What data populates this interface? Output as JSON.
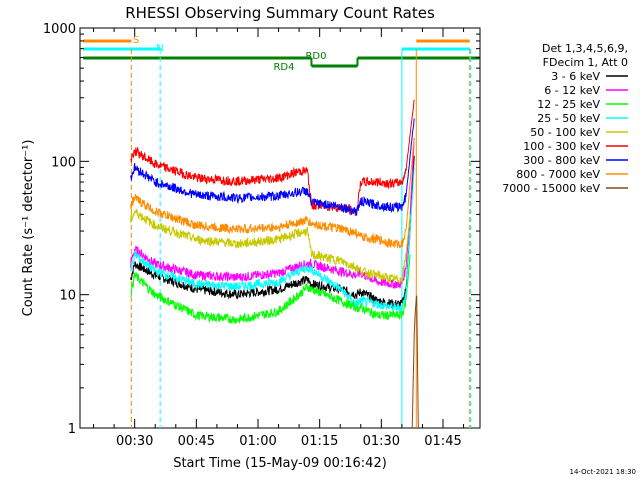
{
  "chart_data": {
    "type": "line",
    "title": "RHESSI Observing Summary Count Rates",
    "xlabel": "Start Time (15-May-09 00:16:42)",
    "ylabel": "Count Rate (s⁻¹ detector⁻¹)",
    "y_scale": "log",
    "x_unit": "minutes after 00:00 UT",
    "xlim": [
      16.7,
      114.0
    ],
    "ylim": [
      1,
      1000
    ],
    "x_ticks": [
      {
        "value": 30,
        "label": "00:30"
      },
      {
        "value": 45,
        "label": "00:45"
      },
      {
        "value": 60,
        "label": "01:00"
      },
      {
        "value": 75,
        "label": "01:15"
      },
      {
        "value": 90,
        "label": "01:30"
      },
      {
        "value": 105,
        "label": "01:45"
      }
    ],
    "y_ticks": [
      {
        "value": 1,
        "label": "1"
      },
      {
        "value": 10,
        "label": "10"
      },
      {
        "value": 100,
        "label": "100"
      },
      {
        "value": 1000,
        "label": "1000"
      }
    ],
    "legend": {
      "position": "right",
      "header": [
        "Det 1,3,4,5,6,9,",
        "FDecim 1, Att 0"
      ]
    },
    "series": [
      {
        "name": "3 - 6 keV",
        "color": "#000000",
        "x": [
          29,
          30,
          35,
          45,
          55,
          65,
          70,
          72,
          73,
          80,
          84,
          85,
          89,
          93,
          95,
          96,
          97,
          98
        ],
        "y": [
          13,
          17,
          14,
          11,
          10,
          11,
          12.5,
          13,
          12,
          11,
          10,
          10.5,
          9,
          8.5,
          8.5,
          11,
          30,
          110
        ]
      },
      {
        "name": "6 - 12 keV",
        "color": "#ff00ff",
        "x": [
          29,
          30,
          35,
          45,
          55,
          65,
          70,
          72,
          73,
          80,
          84,
          85,
          89,
          93,
          95,
          96,
          97,
          98
        ],
        "y": [
          17,
          22,
          17,
          14,
          13.5,
          14.5,
          16.5,
          17,
          17,
          15,
          14,
          14.5,
          12.5,
          12,
          12,
          16,
          40,
          150
        ]
      },
      {
        "name": "12 - 25 keV",
        "color": "#00ff00",
        "x": [
          29,
          30,
          35,
          45,
          55,
          65,
          70,
          72,
          73,
          80,
          84,
          85,
          89,
          93,
          95,
          96,
          97
        ],
        "y": [
          10,
          14,
          10,
          7,
          6.5,
          7.5,
          10,
          11.5,
          11,
          9,
          8,
          8,
          7,
          7,
          7,
          9,
          20
        ]
      },
      {
        "name": "25 - 50 keV",
        "color": "#00ffff",
        "x": [
          29,
          30,
          35,
          45,
          55,
          65,
          70,
          72,
          73,
          80,
          84,
          85,
          89,
          93,
          95,
          96,
          97,
          98
        ],
        "y": [
          15,
          20,
          15,
          12,
          11.5,
          12.5,
          15,
          16,
          15.5,
          11,
          8.5,
          9,
          8.5,
          8,
          8,
          10,
          30,
          90
        ]
      },
      {
        "name": "50 - 100 keV",
        "color": "#c8c800",
        "x": [
          29,
          30,
          35,
          45,
          55,
          65,
          70,
          72,
          73,
          80,
          84,
          85,
          89,
          93,
          95,
          96,
          97
        ],
        "y": [
          36,
          42,
          33,
          26,
          24,
          26,
          29,
          30,
          20,
          18,
          16,
          15,
          14,
          13,
          13,
          20,
          40
        ]
      },
      {
        "name": "100 - 300 keV",
        "color": "#ff0000",
        "x": [
          29,
          30,
          35,
          45,
          55,
          65,
          70,
          72,
          73,
          80,
          84,
          85,
          89,
          93,
          95,
          96,
          97,
          98
        ],
        "y": [
          100,
          120,
          95,
          75,
          71,
          75,
          84,
          85,
          47,
          45,
          42,
          70,
          70,
          68,
          70,
          85,
          160,
          290
        ]
      },
      {
        "name": "300 - 800 keV",
        "color": "#0000ff",
        "x": [
          29,
          30,
          35,
          45,
          55,
          65,
          70,
          72,
          73,
          80,
          84,
          85,
          89,
          93,
          95,
          96,
          97,
          98
        ],
        "y": [
          75,
          90,
          70,
          56,
          53,
          55,
          59,
          60,
          49,
          46,
          42,
          50,
          47,
          45,
          46,
          55,
          110,
          210
        ]
      },
      {
        "name": "800 - 7000 keV",
        "color": "#ff8c00",
        "x": [
          29,
          30,
          35,
          45,
          55,
          65,
          70,
          72,
          73,
          80,
          84,
          85,
          89,
          93,
          95,
          96,
          97,
          98
        ],
        "y": [
          47,
          53,
          42,
          33,
          31,
          32,
          35,
          36,
          34,
          31,
          29,
          27,
          26,
          24,
          24,
          30,
          70,
          150
        ]
      },
      {
        "name": "7000 - 15000 keV",
        "color": "#8b4513",
        "x": [
          97.5,
          98,
          98.3,
          98.6,
          99
        ],
        "y": [
          1,
          5,
          8,
          10,
          1
        ]
      }
    ],
    "status_bars": [
      {
        "label": "S",
        "color": "#ff8c00",
        "segments": [
          [
            17.5,
            29.2
          ],
          [
            98.5,
            111.5
          ]
        ]
      },
      {
        "label": "N",
        "color": "#00ffff",
        "segments": [
          [
            17.5,
            36.2
          ],
          [
            95.0,
            111.5
          ]
        ]
      },
      {
        "label": "RD0",
        "color": "#008000",
        "segments": [
          [
            17.5,
            73.0
          ],
          [
            84.2,
            114.0
          ]
        ]
      },
      {
        "label": "RD4",
        "color": "#008000",
        "segments": [
          [
            73.0,
            84.2
          ]
        ]
      }
    ],
    "vertical_lines": [
      {
        "x": 29.2,
        "color": "#ff8c00",
        "style": "dashed"
      },
      {
        "x": 36.2,
        "color": "#00ffff",
        "style": "dashed"
      },
      {
        "x": 95.0,
        "color": "#00ffff",
        "style": "solid"
      },
      {
        "x": 98.5,
        "color": "#ff8c00",
        "style": "solid"
      },
      {
        "x": 111.5,
        "color": "#ff8c00",
        "style": "dashed"
      },
      {
        "x": 111.7,
        "color": "#00ffff",
        "style": "dashed"
      }
    ],
    "footer_date": "14-Oct-2021 18:30"
  }
}
